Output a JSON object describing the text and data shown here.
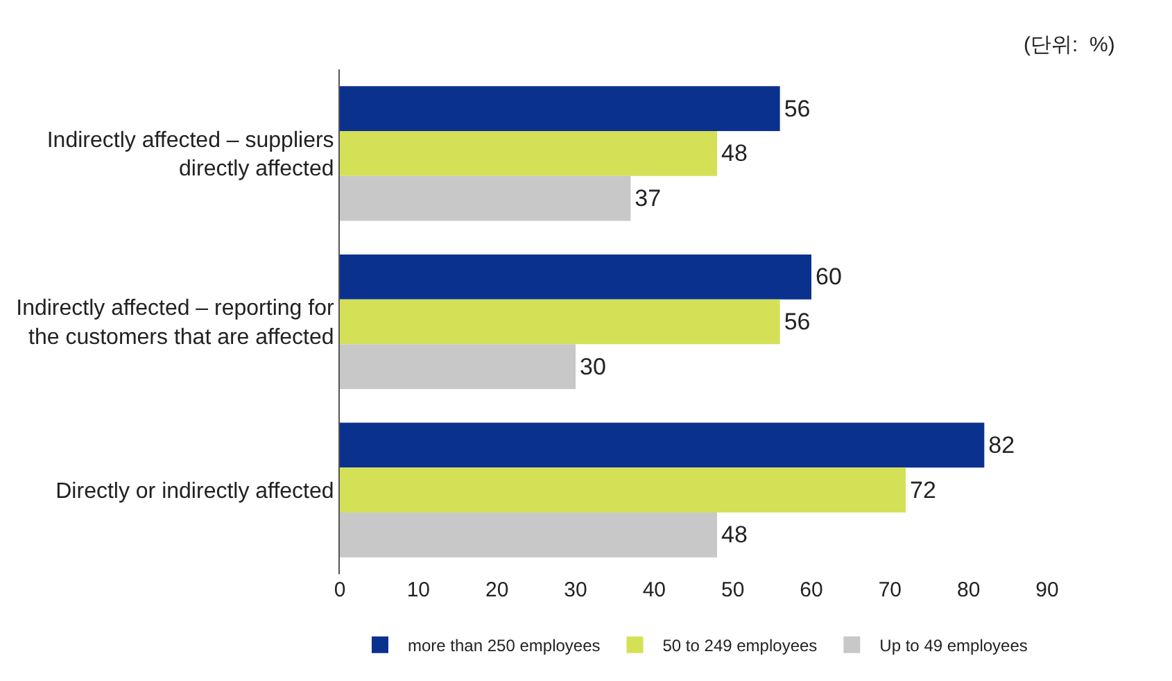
{
  "chart_data": {
    "type": "bar",
    "orientation": "horizontal",
    "categories": [
      "Indirectly affected – suppliers directly affected",
      "Indirectly affected – reporting for the customers that are affected",
      "Directly or indirectly affected"
    ],
    "series": [
      {
        "name": "more than 250 employees",
        "color": "#0b318f",
        "values": [
          56,
          60,
          82
        ]
      },
      {
        "name": "50 to 249 employees",
        "color": "#d4e157",
        "values": [
          48,
          56,
          72
        ]
      },
      {
        "name": "Up to 49 employees",
        "color": "#c8c8c8",
        "values": [
          37,
          30,
          48
        ]
      }
    ],
    "xlim": [
      0,
      90
    ],
    "xticks": [
      0,
      10,
      20,
      30,
      40,
      50,
      60,
      70,
      80,
      90
    ],
    "data_labels": true,
    "legend": "bottom",
    "annotations": [
      "(단위:  %)"
    ]
  }
}
